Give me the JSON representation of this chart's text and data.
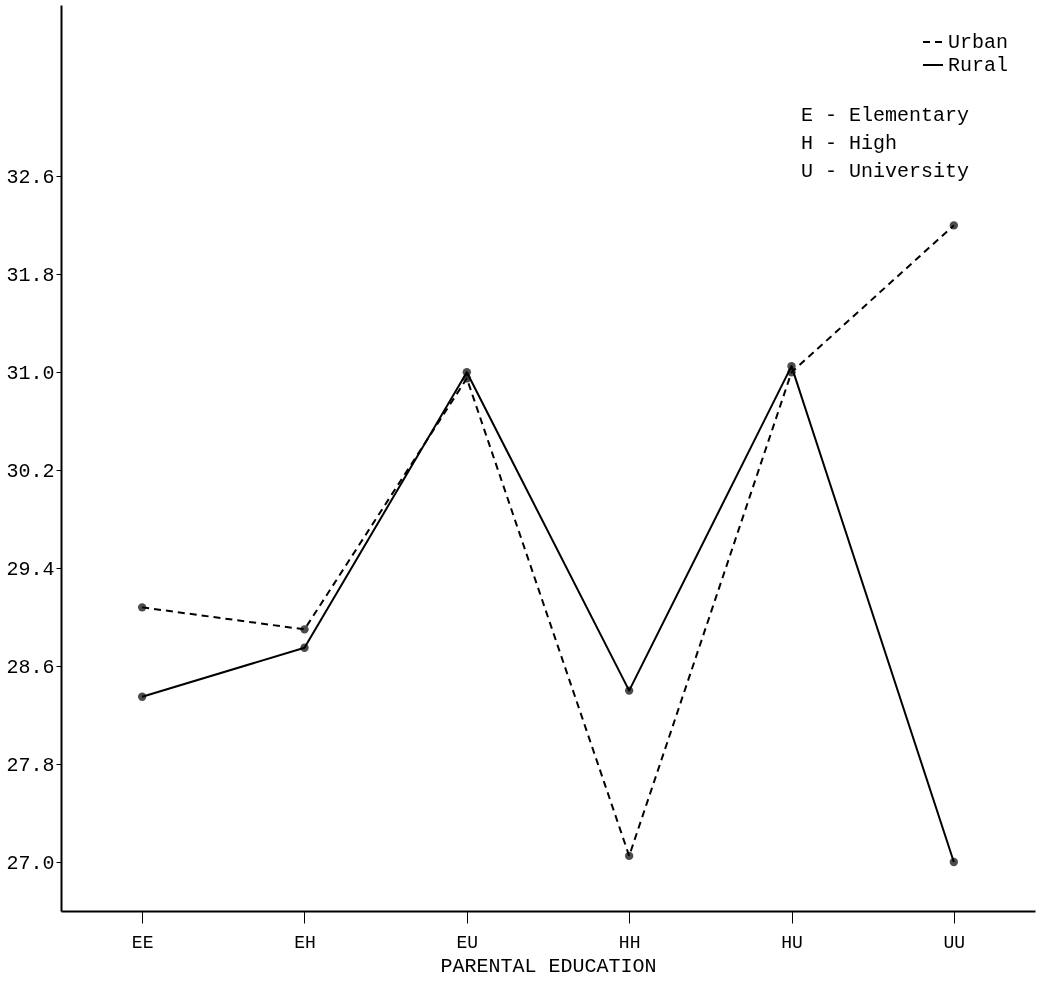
{
  "chart_data": {
    "type": "line",
    "xlabel": "PARENTAL EDUCATION",
    "categories": [
      "EE",
      "EH",
      "EU",
      "HH",
      "HU",
      "UU"
    ],
    "series": [
      {
        "name": "Urban",
        "color": "#000000",
        "line_style": "dashed",
        "values": [
          29.08,
          28.9,
          30.95,
          27.05,
          31.0,
          32.2
        ]
      },
      {
        "name": "Rural",
        "color": "#000000",
        "line_style": "solid",
        "values": [
          28.35,
          28.75,
          31.0,
          28.4,
          31.05,
          27.0
        ]
      }
    ],
    "ylim": [
      26.6,
      34.0
    ],
    "yticks": [
      {
        "value": 27.0,
        "label": "27.0"
      },
      {
        "value": 27.8,
        "label": "27.8"
      },
      {
        "value": 28.6,
        "label": "28.6"
      },
      {
        "value": 29.4,
        "label": "29.4"
      },
      {
        "value": 30.2,
        "label": "30.2"
      },
      {
        "value": 31.0,
        "label": "31.0"
      },
      {
        "value": 31.8,
        "label": "31.8"
      },
      {
        "value": 32.6,
        "label": "32.6"
      }
    ],
    "annotations": [
      "E - Elementary",
      "H - High",
      "U - University"
    ],
    "marker": "circle",
    "legend": "top right",
    "grid": false
  }
}
